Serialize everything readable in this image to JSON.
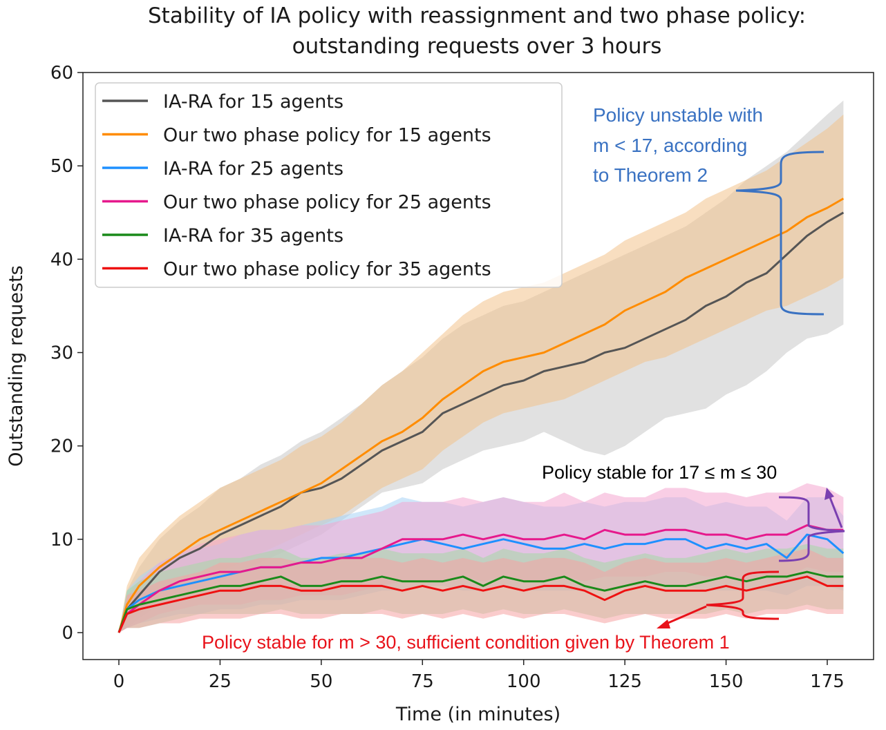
{
  "chart_data": {
    "type": "line",
    "title_lines": [
      "Stability of IA policy with reassignment and two phase policy:",
      "outstanding requests over 3 hours"
    ],
    "xlabel": "Time (in minutes)",
    "ylabel": "Outstanding requests",
    "xlim": [
      -8,
      188
    ],
    "ylim": [
      -3,
      60
    ],
    "xticks": [
      0,
      25,
      50,
      75,
      100,
      125,
      150,
      175
    ],
    "yticks": [
      0,
      10,
      20,
      30,
      40,
      50,
      60
    ],
    "legend_position": "top-left",
    "series": [
      {
        "name": "IA-RA for 15 agents",
        "color": "#555555",
        "band_color": "#c8c8c8",
        "x": [
          0,
          2,
          5,
          10,
          15,
          20,
          25,
          30,
          35,
          40,
          45,
          50,
          55,
          60,
          65,
          70,
          75,
          80,
          85,
          90,
          95,
          100,
          105,
          110,
          115,
          120,
          125,
          130,
          135,
          140,
          145,
          150,
          155,
          160,
          165,
          170,
          175,
          179
        ],
        "mean": [
          0,
          2.5,
          4,
          6.5,
          8,
          9,
          10.5,
          11.5,
          12.5,
          13.5,
          15,
          15.5,
          16.5,
          18,
          19.5,
          20.5,
          21.5,
          23.5,
          24.5,
          25.5,
          26.5,
          27,
          28,
          28.5,
          29,
          30,
          30.5,
          31.5,
          32.5,
          33.5,
          35,
          36,
          37.5,
          38.5,
          40.5,
          42.5,
          44,
          45
        ],
        "lower": [
          0,
          0.5,
          1.5,
          3,
          4,
          4.5,
          5.5,
          6.5,
          7.5,
          8.5,
          9.5,
          10.5,
          12,
          13.5,
          15,
          15.5,
          16,
          17.5,
          18.5,
          19.5,
          20,
          20.5,
          21.5,
          20.5,
          19.5,
          19,
          20,
          21.5,
          23,
          23.5,
          24,
          25.5,
          26.5,
          28,
          30,
          31.5,
          32,
          33
        ],
        "upper": [
          0,
          4.5,
          7,
          10,
          12,
          13.5,
          15.5,
          16.5,
          18,
          19,
          20.5,
          21.5,
          23,
          24.5,
          26.5,
          28,
          29.5,
          31.5,
          33,
          34,
          35,
          35.5,
          36.5,
          37.5,
          38.5,
          39.5,
          40.5,
          41.5,
          42.5,
          43.5,
          45,
          46.5,
          48.5,
          50,
          51.5,
          53.5,
          55.5,
          57
        ]
      },
      {
        "name": "Our two phase policy for 15 agents",
        "color": "#ff8c00",
        "band_color": "#f2c28c",
        "x": [
          0,
          2,
          5,
          10,
          15,
          20,
          25,
          30,
          35,
          40,
          45,
          50,
          55,
          60,
          65,
          70,
          75,
          80,
          85,
          90,
          95,
          100,
          105,
          110,
          115,
          120,
          125,
          130,
          135,
          140,
          145,
          150,
          155,
          160,
          165,
          170,
          175,
          179
        ],
        "mean": [
          0,
          3,
          5,
          7,
          8.5,
          10,
          11,
          12,
          13,
          14,
          15,
          16,
          17.5,
          19,
          20.5,
          21.5,
          23,
          25,
          26.5,
          28,
          29,
          29.5,
          30,
          31,
          32,
          33,
          34.5,
          35.5,
          36.5,
          38,
          39,
          40,
          41,
          42,
          43,
          44.5,
          45.5,
          46.5
        ],
        "lower": [
          0,
          1,
          2,
          3.5,
          4.5,
          5.5,
          6.5,
          7.5,
          8.5,
          9.5,
          10.5,
          11.5,
          12.5,
          14,
          15.5,
          16.5,
          17.5,
          19.5,
          21,
          22.5,
          23.5,
          24,
          24.5,
          25,
          26,
          27,
          28,
          29,
          29.5,
          30.5,
          31.5,
          32.5,
          33.5,
          34.5,
          35,
          36,
          37,
          38
        ],
        "upper": [
          0,
          5,
          8,
          10.5,
          12.5,
          14,
          15.5,
          16.5,
          17.5,
          18.5,
          20,
          21,
          22.5,
          24.5,
          26.5,
          28,
          30,
          32,
          34,
          35.5,
          36.5,
          37,
          37.5,
          38.5,
          39.5,
          40.5,
          42,
          43,
          44,
          45,
          46.5,
          47.5,
          48.5,
          49.5,
          51,
          52.5,
          54,
          55.5
        ]
      },
      {
        "name": "IA-RA for 25 agents",
        "color": "#1e90ff",
        "band_color": "#a8d4f5",
        "x": [
          0,
          2,
          5,
          10,
          15,
          20,
          25,
          30,
          35,
          40,
          45,
          50,
          55,
          60,
          65,
          70,
          75,
          80,
          85,
          90,
          95,
          100,
          105,
          110,
          115,
          120,
          125,
          130,
          135,
          140,
          145,
          150,
          155,
          160,
          165,
          170,
          175,
          179
        ],
        "mean": [
          0,
          2.5,
          3.5,
          4.5,
          5,
          5.5,
          6,
          6.5,
          7,
          7,
          7.5,
          8,
          8,
          8.5,
          9,
          9.5,
          10,
          9.5,
          9,
          9.5,
          10,
          9.5,
          9,
          9,
          9.5,
          9,
          9.5,
          9.5,
          10,
          10,
          9,
          9.5,
          9,
          9.5,
          8,
          10.5,
          10,
          8.5
        ],
        "lower": [
          0,
          0.5,
          1,
          1.5,
          2,
          2,
          2.5,
          2.5,
          3,
          3,
          3.5,
          3.5,
          3.5,
          4,
          4.5,
          4.5,
          5,
          5,
          4.5,
          4.5,
          5,
          4.5,
          4.5,
          4.5,
          4.5,
          4.5,
          5,
          5,
          5,
          5,
          4.5,
          4.5,
          4.5,
          4.5,
          4,
          5,
          5,
          4.5
        ],
        "upper": [
          0,
          4.5,
          6,
          7.5,
          8.5,
          9,
          9.5,
          10.5,
          11,
          11,
          11.5,
          12,
          12.5,
          13,
          13.5,
          14.5,
          14,
          14,
          13.5,
          14,
          14.5,
          14,
          13.5,
          13.5,
          14,
          13.5,
          14,
          14,
          14.5,
          14.5,
          13.5,
          14,
          13.5,
          13.5,
          12,
          14.5,
          14.5,
          12.5
        ]
      },
      {
        "name": "Our two phase policy for 25 agents",
        "color": "#e6198c",
        "band_color": "#f4a6d0",
        "x": [
          0,
          2,
          5,
          10,
          15,
          20,
          25,
          30,
          35,
          40,
          45,
          50,
          55,
          60,
          65,
          70,
          75,
          80,
          85,
          90,
          95,
          100,
          105,
          110,
          115,
          120,
          125,
          130,
          135,
          140,
          145,
          150,
          155,
          160,
          165,
          170,
          175,
          179
        ],
        "mean": [
          0,
          2,
          3,
          4.5,
          5.5,
          6,
          6.5,
          6.5,
          7,
          7,
          7.5,
          7.5,
          8,
          8,
          9,
          10,
          10,
          10,
          10.5,
          10,
          10.5,
          10,
          10,
          10.5,
          10,
          11,
          10.5,
          10.5,
          11,
          11,
          10.5,
          10.5,
          10,
          10.5,
          10.5,
          11.5,
          11,
          11
        ],
        "lower": [
          0,
          0.5,
          1,
          2,
          2.5,
          3,
          3,
          3,
          3.5,
          3.5,
          4,
          4,
          4,
          4.5,
          5,
          5.5,
          5.5,
          5.5,
          6,
          5.5,
          6,
          5.5,
          5.5,
          6,
          5.5,
          6,
          6,
          6,
          6.5,
          6.5,
          6,
          6,
          5.5,
          6,
          6,
          7,
          6.5,
          6.5
        ],
        "upper": [
          0,
          4,
          5.5,
          7.5,
          8.5,
          9.5,
          10,
          10.5,
          11,
          11,
          11.5,
          11.5,
          12,
          12.5,
          13,
          14,
          14,
          14,
          14.5,
          14,
          14.5,
          14,
          14,
          15,
          14,
          15,
          14.5,
          14.5,
          15.5,
          15.5,
          15,
          15,
          14.5,
          15,
          15,
          16,
          15.5,
          14.5
        ]
      },
      {
        "name": "IA-RA for 35 agents",
        "color": "#1a8a1a",
        "band_color": "#a6d9a6",
        "x": [
          0,
          2,
          5,
          10,
          15,
          20,
          25,
          30,
          35,
          40,
          45,
          50,
          55,
          60,
          65,
          70,
          75,
          80,
          85,
          90,
          95,
          100,
          105,
          110,
          115,
          120,
          125,
          130,
          135,
          140,
          145,
          150,
          155,
          160,
          165,
          170,
          175,
          179
        ],
        "mean": [
          0,
          2.5,
          3,
          3.5,
          4,
          4.5,
          5,
          5,
          5.5,
          6,
          5,
          5,
          5.5,
          5.5,
          6,
          5.5,
          5.5,
          5.5,
          6,
          5,
          6,
          5.5,
          5.5,
          6,
          5,
          4.5,
          5,
          5.5,
          5,
          5,
          5.5,
          6,
          5.5,
          6,
          6,
          6.5,
          6,
          6
        ],
        "lower": [
          0,
          0.5,
          0.5,
          1,
          1.5,
          2,
          2,
          2,
          2,
          2.5,
          2,
          2,
          2,
          2,
          2.5,
          2,
          2,
          2,
          2.5,
          2,
          2.5,
          2,
          2,
          2.5,
          2,
          1.5,
          2,
          2,
          2,
          2,
          2,
          2.5,
          2,
          2.5,
          2.5,
          3,
          2.5,
          2.5
        ],
        "upper": [
          0,
          4.5,
          5.5,
          6.5,
          7,
          7.5,
          8,
          8,
          8.5,
          9,
          8,
          8,
          8.5,
          8.5,
          9,
          8.5,
          8.5,
          8.5,
          9,
          8,
          9,
          8.5,
          8.5,
          9,
          8,
          7.5,
          8,
          8.5,
          8,
          8,
          8.5,
          9,
          8.5,
          9,
          9,
          9.5,
          9,
          9
        ]
      },
      {
        "name": "Our two phase policy for 35 agents",
        "color": "#ee1111",
        "band_color": "#f5a3a3",
        "x": [
          0,
          2,
          5,
          10,
          15,
          20,
          25,
          30,
          35,
          40,
          45,
          50,
          55,
          60,
          65,
          70,
          75,
          80,
          85,
          90,
          95,
          100,
          105,
          110,
          115,
          120,
          125,
          130,
          135,
          140,
          145,
          150,
          155,
          160,
          165,
          170,
          175,
          179
        ],
        "mean": [
          0,
          2,
          2.5,
          3,
          3.5,
          4,
          4.5,
          4.5,
          5,
          5,
          4.5,
          4.5,
          5,
          5,
          5,
          4.5,
          5,
          4.5,
          5,
          4.5,
          5,
          4.5,
          5,
          5,
          4.5,
          3.5,
          4.5,
          5,
          4.5,
          4.5,
          4.5,
          5,
          4.5,
          5,
          5.5,
          6,
          5,
          5
        ],
        "lower": [
          0,
          0.5,
          0.5,
          1,
          1,
          1.5,
          1.5,
          1.5,
          2,
          2,
          1.5,
          1.5,
          2,
          2,
          2,
          1.5,
          2,
          1.5,
          2,
          1.5,
          2,
          1.5,
          2,
          2,
          1.5,
          1,
          1.5,
          2,
          1.5,
          1.5,
          1.5,
          2,
          1.5,
          2,
          2,
          2.5,
          2,
          2
        ],
        "upper": [
          0,
          4,
          4.5,
          5.5,
          6,
          6.5,
          7.5,
          7.5,
          8,
          8,
          7.5,
          7.5,
          8,
          8,
          8,
          7.5,
          8,
          7.5,
          8,
          7.5,
          8,
          7.5,
          8,
          8,
          7.5,
          6.5,
          7.5,
          8,
          7.5,
          7.5,
          7.5,
          8,
          7.5,
          8,
          8.5,
          9,
          8,
          8
        ]
      }
    ],
    "annotations": {
      "unstable": {
        "lines": [
          "Policy unstable with",
          "m < 17, according",
          "to Theorem 2"
        ],
        "color": "#3a72c2"
      },
      "stable_mid": {
        "text": "Policy stable for 17 ≤ m ≤ 30",
        "color": "#000000",
        "brace_color": "#7a3fb0"
      },
      "stable_high": {
        "text": "Policy stable for m > 30, sufficient condition given by Theorem 1",
        "color": "#e8121a"
      }
    }
  }
}
